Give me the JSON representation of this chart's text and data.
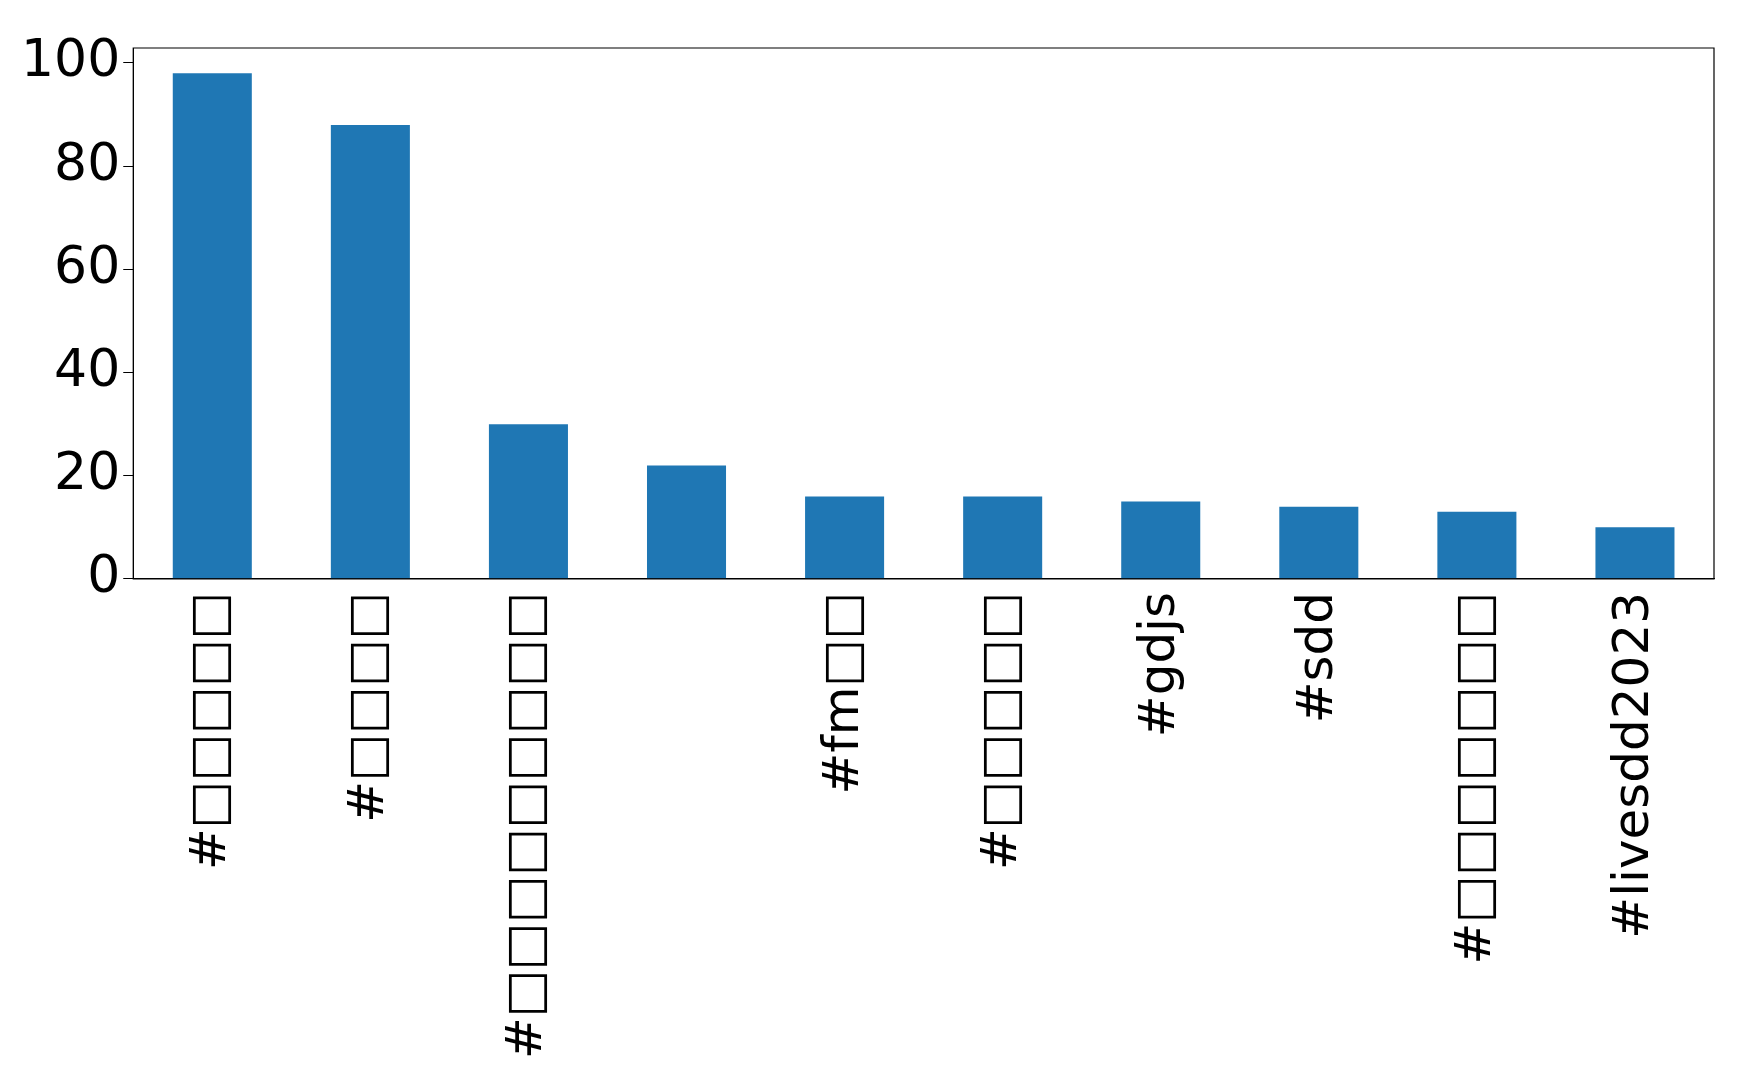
{
  "chart_data": {
    "type": "bar",
    "categories": [
      "#□□□□□",
      "#□□□□",
      "#□□□□□□□□□",
      null,
      "#fm□□",
      "#□□□□□",
      "#gdjs",
      "#sdd",
      "#□□□□□□□",
      "#livesdd2023"
    ],
    "values": [
      98,
      88,
      30,
      22,
      16,
      16,
      15,
      14,
      13,
      10
    ],
    "color": "#1f77b4",
    "ylim": [
      0,
      102.9
    ],
    "yticks": [
      0,
      20,
      40,
      60,
      80,
      100
    ],
    "grid": false,
    "legend": false
  }
}
